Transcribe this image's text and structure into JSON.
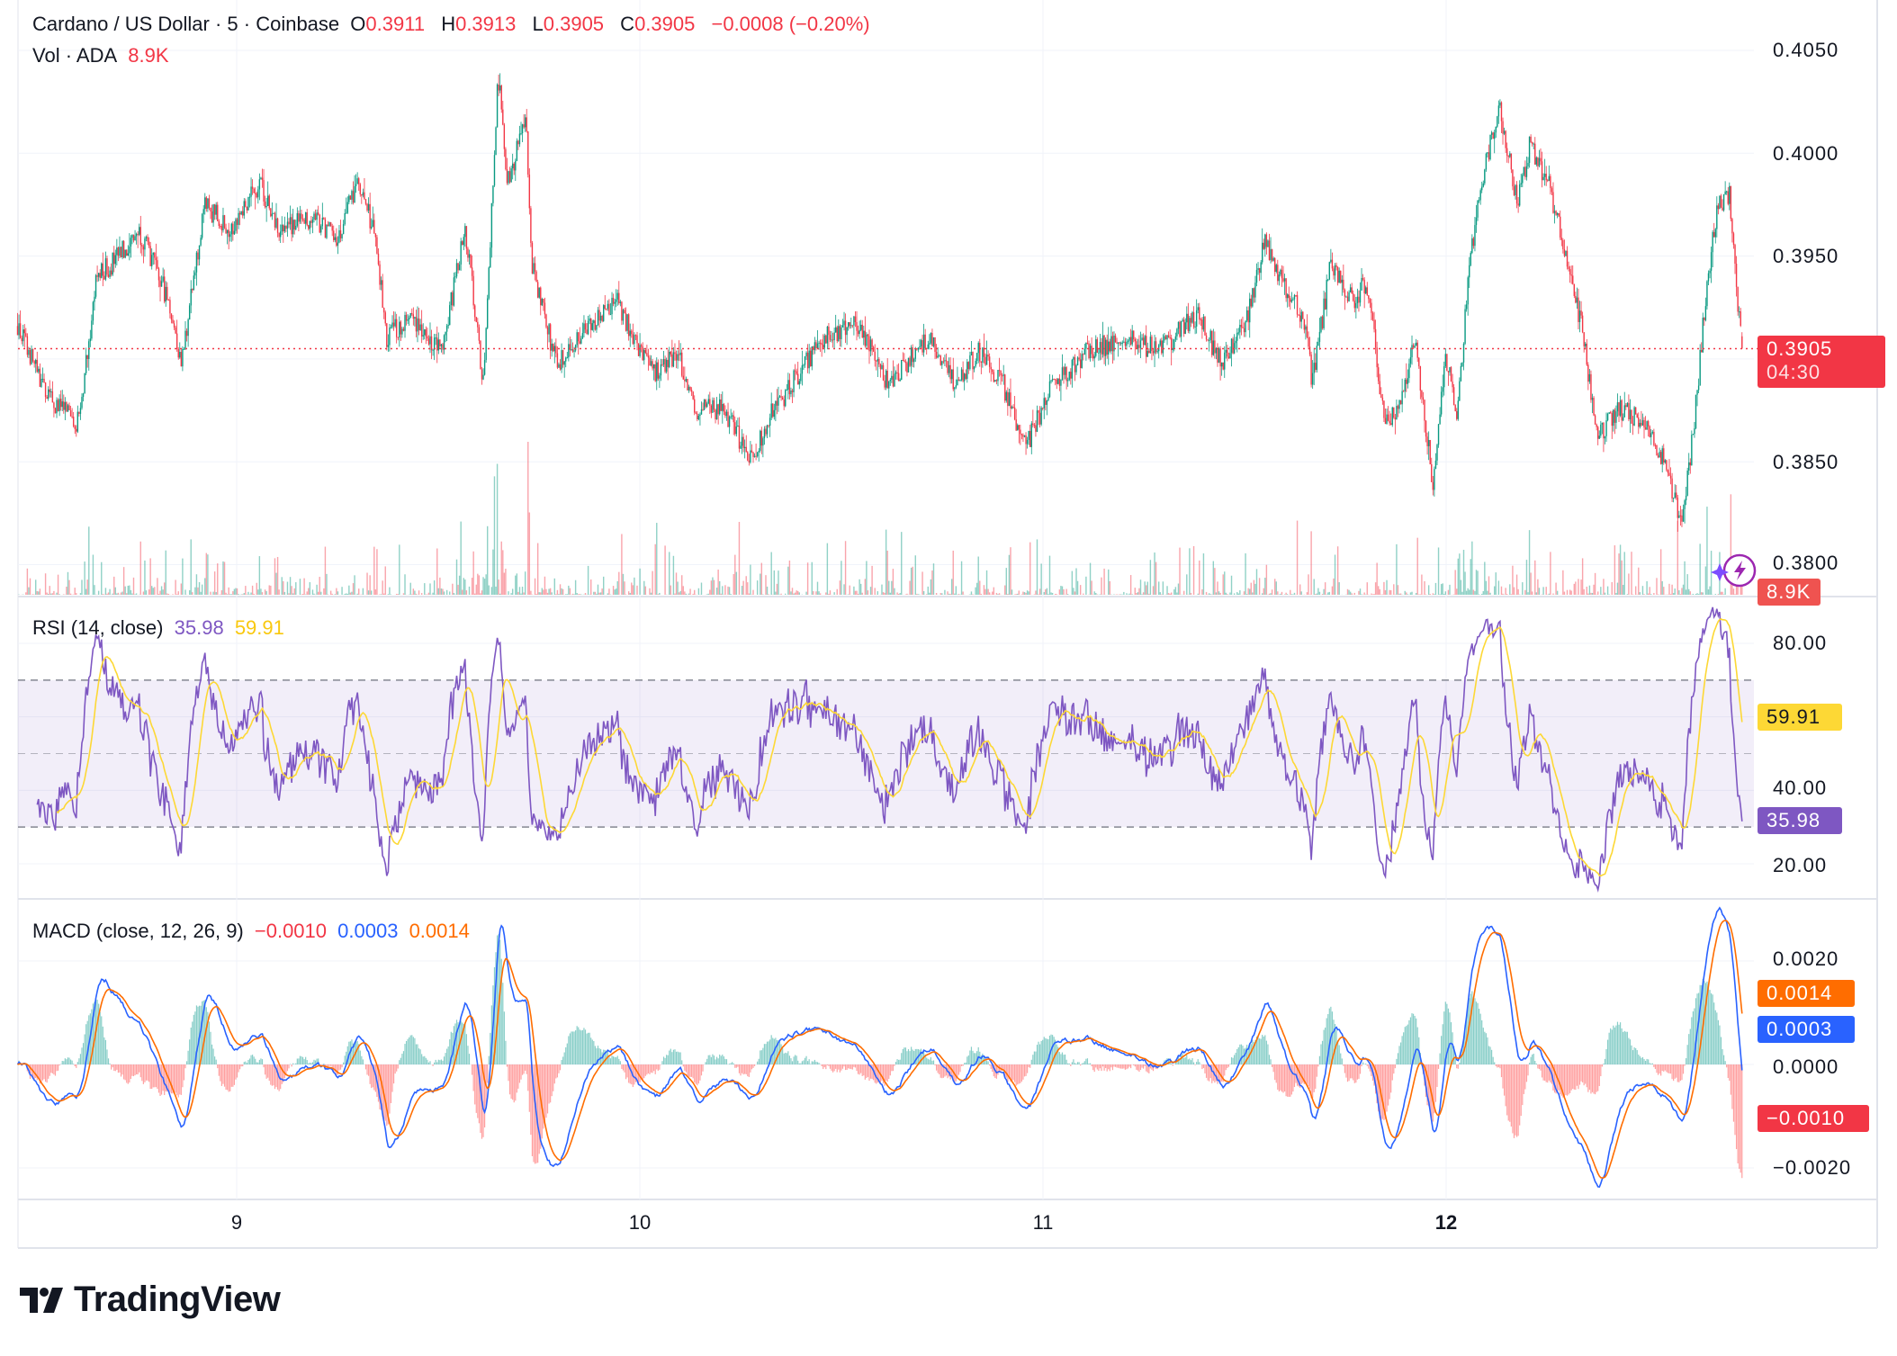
{
  "header": {
    "symbol": "Cardano / US Dollar · 5 · Coinbase",
    "o_label": "O",
    "o_value": "0.3911",
    "h_label": "H",
    "h_value": "0.3913",
    "l_label": "L",
    "l_value": "0.3905",
    "c_label": "C",
    "c_value": "0.3905",
    "change": "−0.0008 (−0.20%)",
    "vol_label": "Vol · ADA",
    "vol_value": "8.9K"
  },
  "rsi_legend": {
    "label": "RSI (14, close)",
    "rsi": "35.98",
    "sma": "59.91"
  },
  "macd_legend": {
    "label": "MACD (close, 12, 26, 9)",
    "hist": "−0.0010",
    "macd": "0.0003",
    "signal": "0.0014"
  },
  "tags": {
    "price": "0.3905",
    "countdown": "04:30",
    "volume": "8.9K",
    "rsi_sma": "59.91",
    "rsi": "35.98",
    "macd_signal": "0.0014",
    "macd": "0.0003",
    "macd_hist": "−0.0010"
  },
  "brand": "TradingView",
  "colors": {
    "up": "#089981",
    "down": "#F23645",
    "rsi": "#7E57C2",
    "rsi_sma": "#FDD835",
    "macd": "#2962FF",
    "signal": "#FF6D00"
  },
  "chart_data": {
    "type": "candlestick",
    "title": "Cardano / US Dollar · 5 · Coinbase",
    "interval_minutes": 5,
    "x_ticks": [
      "9",
      "10",
      "11",
      "12"
    ],
    "price_ticks": [
      "0.4050",
      "0.4000",
      "0.3950",
      "0.3850",
      "0.3800"
    ],
    "price_range": [
      0.378,
      0.4055
    ],
    "last_price": 0.3905,
    "price_path_day_price": [
      [
        8.456,
        0.3916
      ],
      [
        8.532,
        0.3881
      ],
      [
        8.607,
        0.3869
      ],
      [
        8.652,
        0.3939
      ],
      [
        8.712,
        0.3951
      ],
      [
        8.757,
        0.3963
      ],
      [
        8.832,
        0.3928
      ],
      [
        8.862,
        0.3898
      ],
      [
        8.922,
        0.3975
      ],
      [
        8.982,
        0.3963
      ],
      [
        9.057,
        0.3986
      ],
      [
        9.102,
        0.3963
      ],
      [
        9.192,
        0.3969
      ],
      [
        9.252,
        0.3957
      ],
      [
        9.297,
        0.3986
      ],
      [
        9.342,
        0.3963
      ],
      [
        9.372,
        0.391
      ],
      [
        9.432,
        0.3922
      ],
      [
        9.508,
        0.3904
      ],
      [
        9.568,
        0.3963
      ],
      [
        9.613,
        0.3887
      ],
      [
        9.649,
        0.4039
      ],
      [
        9.673,
        0.3986
      ],
      [
        9.718,
        0.4016
      ],
      [
        9.733,
        0.3945
      ],
      [
        9.793,
        0.3898
      ],
      [
        9.883,
        0.3916
      ],
      [
        9.943,
        0.3928
      ],
      [
        10.033,
        0.3892
      ],
      [
        10.093,
        0.3904
      ],
      [
        10.138,
        0.3875
      ],
      [
        10.213,
        0.3875
      ],
      [
        10.273,
        0.3851
      ],
      [
        10.333,
        0.3875
      ],
      [
        10.393,
        0.3892
      ],
      [
        10.453,
        0.391
      ],
      [
        10.544,
        0.3916
      ],
      [
        10.619,
        0.3887
      ],
      [
        10.664,
        0.3898
      ],
      [
        10.724,
        0.391
      ],
      [
        10.784,
        0.3887
      ],
      [
        10.844,
        0.3904
      ],
      [
        10.904,
        0.3887
      ],
      [
        10.958,
        0.3857
      ],
      [
        11.024,
        0.3887
      ],
      [
        11.114,
        0.3904
      ],
      [
        11.204,
        0.391
      ],
      [
        11.294,
        0.3904
      ],
      [
        11.384,
        0.3922
      ],
      [
        11.444,
        0.3898
      ],
      [
        11.505,
        0.3916
      ],
      [
        11.55,
        0.3957
      ],
      [
        11.595,
        0.3939
      ],
      [
        11.655,
        0.3916
      ],
      [
        11.67,
        0.3887
      ],
      [
        11.715,
        0.3945
      ],
      [
        11.775,
        0.3928
      ],
      [
        11.805,
        0.3939
      ],
      [
        11.85,
        0.3869
      ],
      [
        11.895,
        0.3881
      ],
      [
        11.925,
        0.391
      ],
      [
        11.97,
        0.384
      ],
      [
        12.0,
        0.3904
      ],
      [
        12.03,
        0.3869
      ],
      [
        12.06,
        0.3945
      ],
      [
        12.09,
        0.3986
      ],
      [
        12.135,
        0.4022
      ],
      [
        12.18,
        0.3975
      ],
      [
        12.21,
        0.4004
      ],
      [
        12.255,
        0.3986
      ],
      [
        12.3,
        0.3951
      ],
      [
        12.345,
        0.391
      ],
      [
        12.375,
        0.3863
      ],
      [
        12.435,
        0.3875
      ],
      [
        12.495,
        0.3869
      ],
      [
        12.541,
        0.3851
      ],
      [
        12.586,
        0.3822
      ],
      [
        12.616,
        0.3863
      ],
      [
        12.646,
        0.3928
      ],
      [
        12.676,
        0.3975
      ],
      [
        12.706,
        0.3981
      ],
      [
        12.736,
        0.3905
      ]
    ],
    "rsi": {
      "period": 14,
      "ticks": [
        "80.00",
        "40.00",
        "20.00"
      ],
      "range": [
        20,
        80
      ],
      "bands": [
        30,
        50,
        70
      ]
    },
    "macd": {
      "fast": 12,
      "slow": 26,
      "signal": 9,
      "ticks": [
        "0.0020",
        "0.0000",
        "−0.0020"
      ],
      "range": [
        -0.002,
        0.002
      ]
    }
  }
}
